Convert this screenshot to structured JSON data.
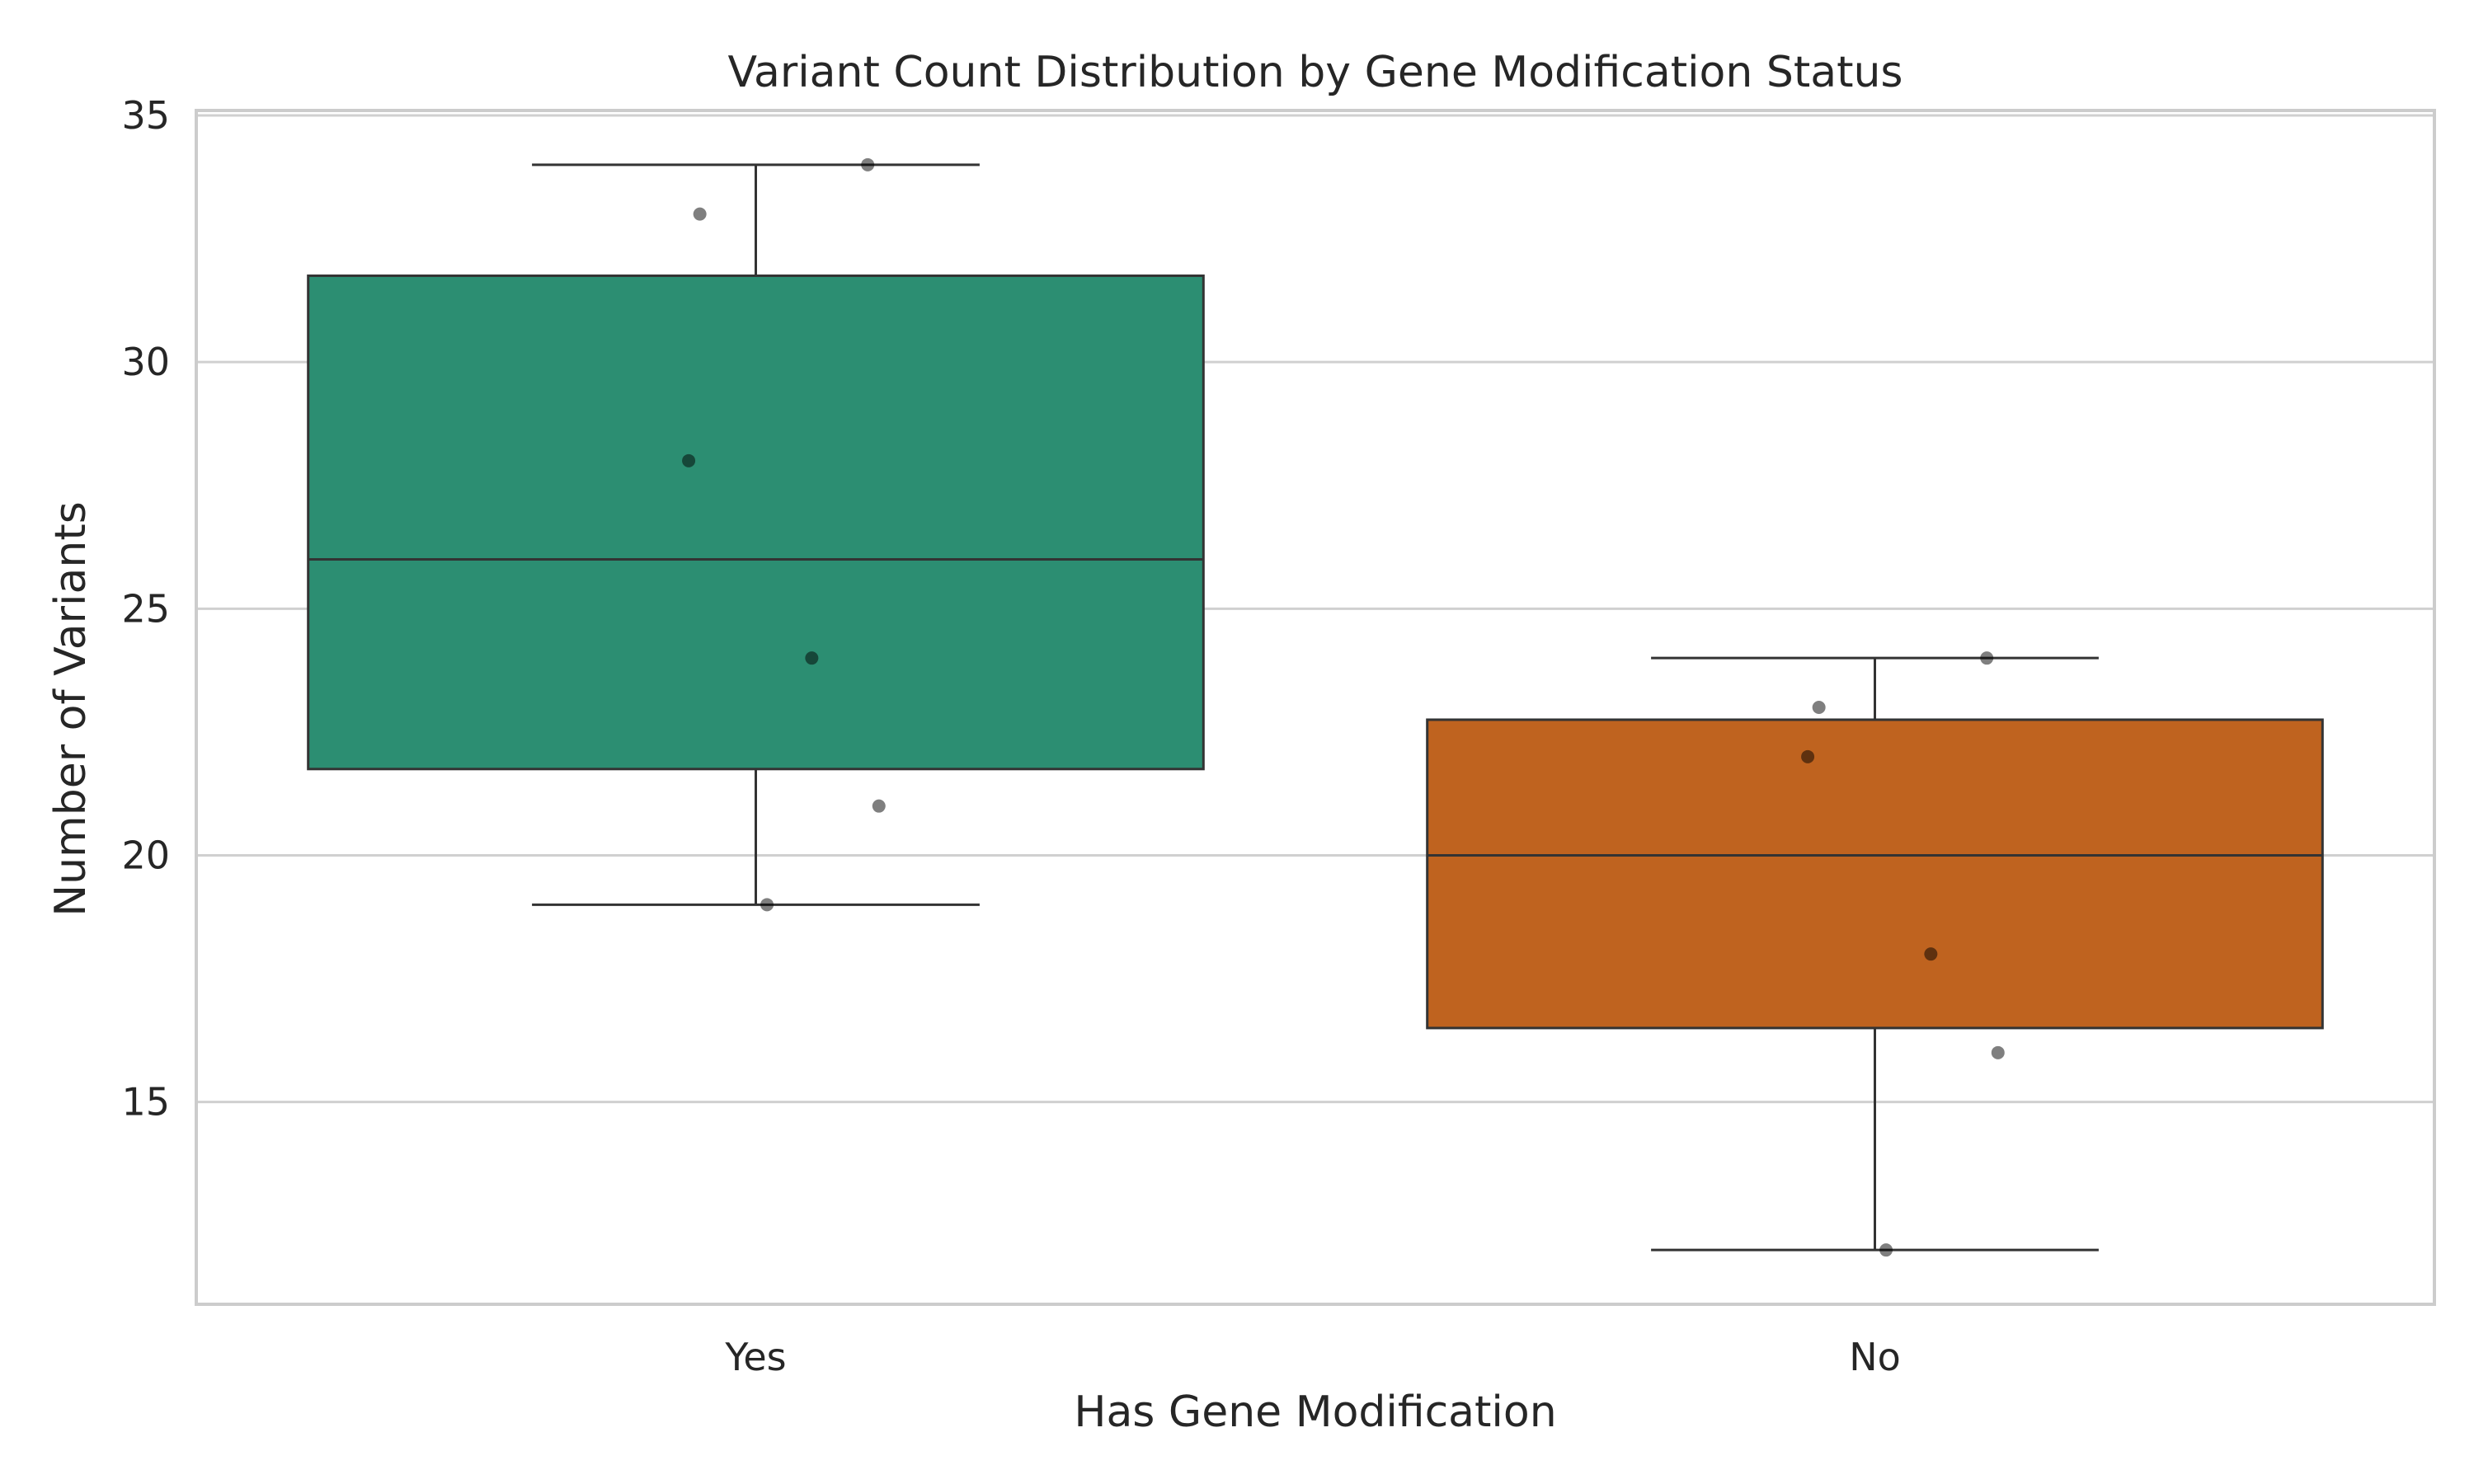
{
  "chart_data": {
    "type": "box",
    "title": "Variant Count Distribution by Gene Modification Status",
    "xlabel": "Has Gene Modification",
    "ylabel": "Number of Variants",
    "ylim": [
      10.9,
      35.1
    ],
    "yticks": [
      15,
      20,
      25,
      30,
      35
    ],
    "grid": "horizontal",
    "categories": [
      "Yes",
      "No"
    ],
    "colors": [
      "#2c8e72",
      "#bf631f"
    ],
    "boxes": [
      {
        "category": "Yes",
        "whisker_low": 19,
        "q1": 21.75,
        "median": 26,
        "q3": 31.75,
        "whisker_high": 34
      },
      {
        "category": "No",
        "whisker_low": 12,
        "q1": 16.5,
        "median": 20,
        "q3": 22.75,
        "whisker_high": 24
      }
    ],
    "points": [
      {
        "category": "Yes",
        "values": [
          34,
          33,
          28,
          24,
          21,
          19
        ]
      },
      {
        "category": "No",
        "values": [
          24,
          23,
          22,
          18,
          16,
          12
        ]
      }
    ]
  }
}
